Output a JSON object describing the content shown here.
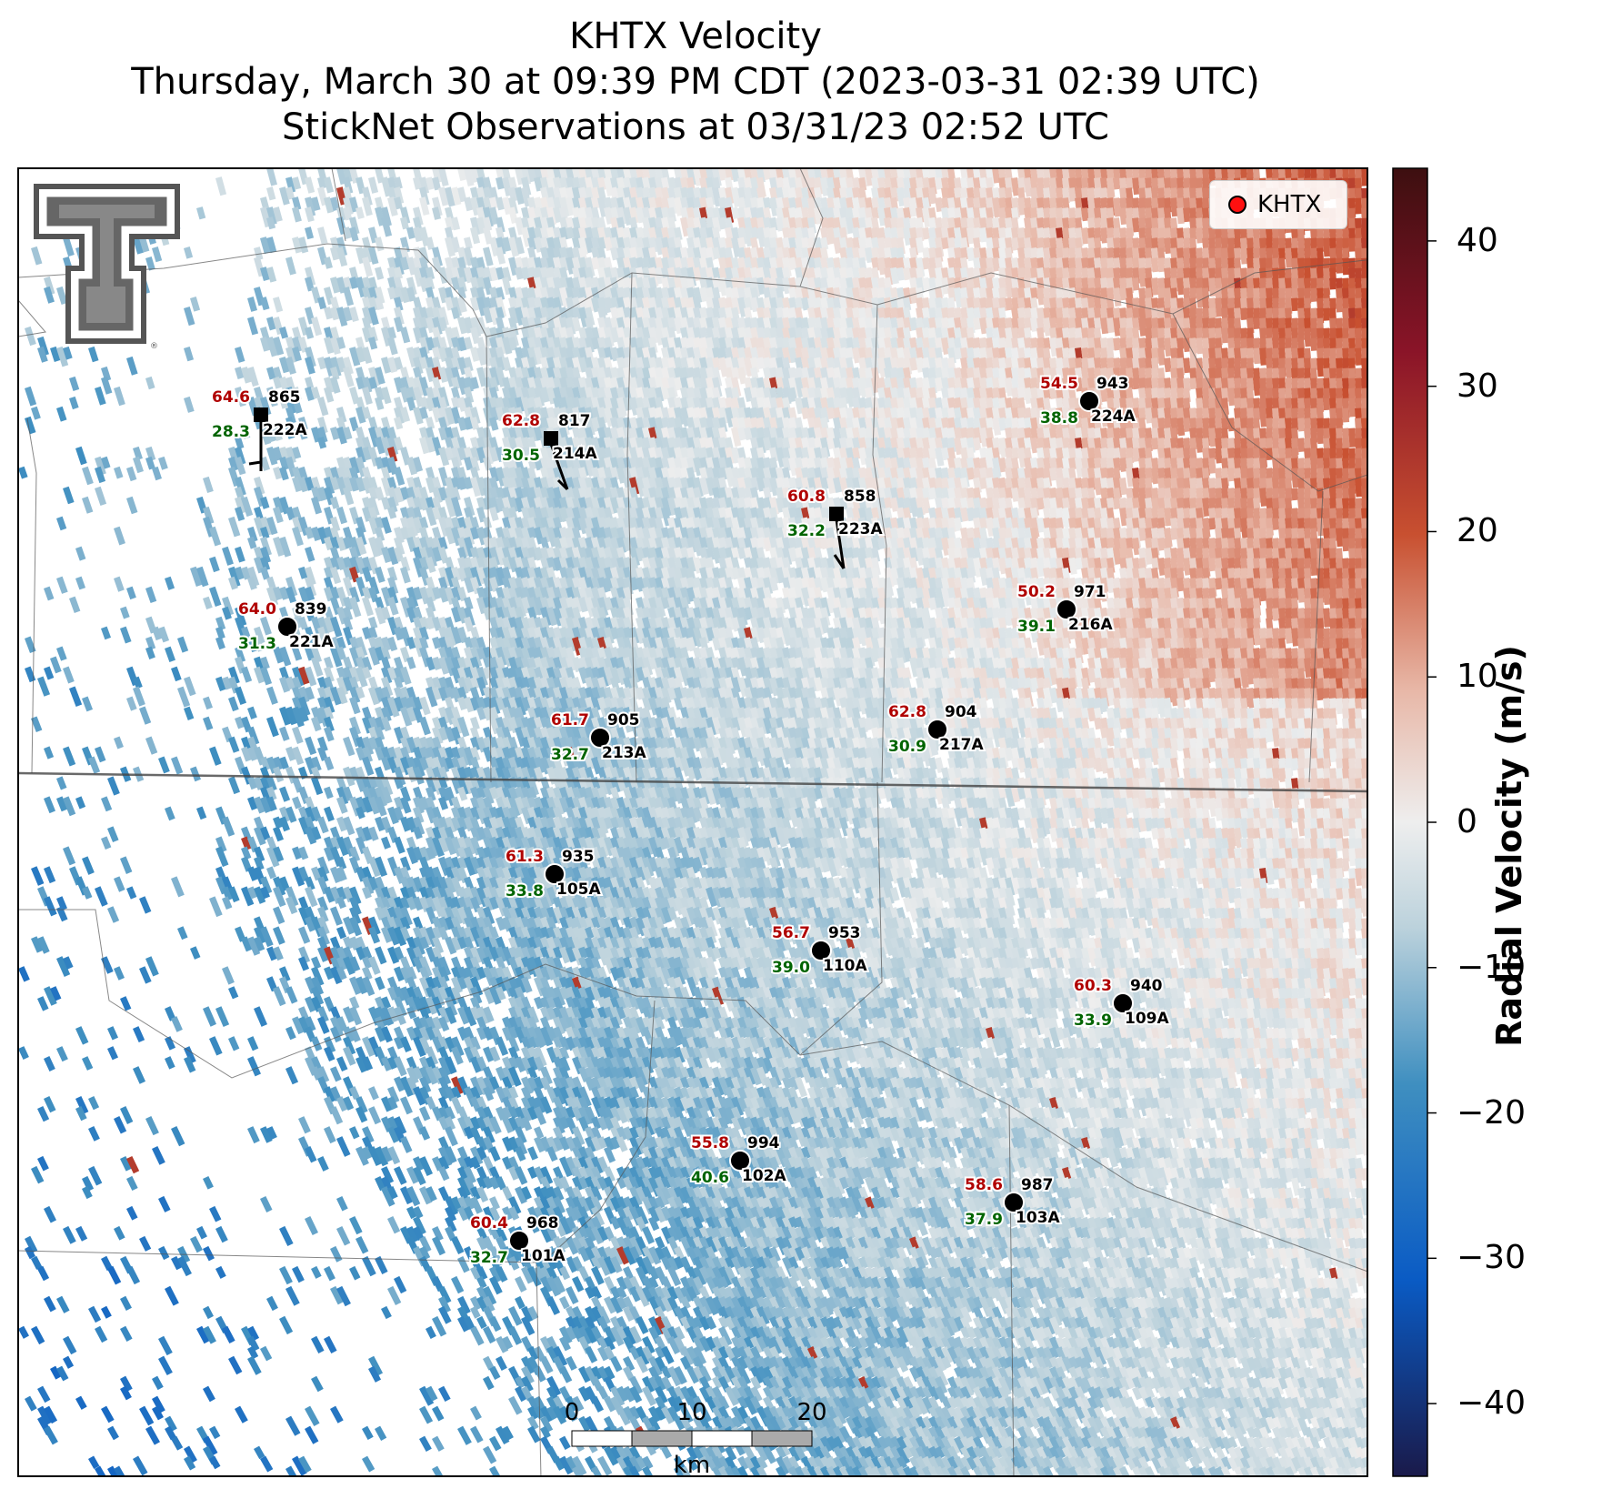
{
  "title": {
    "line1": "KHTX Velocity",
    "line2": "Thursday, March 30 at 09:39 PM CDT (2023-03-31 02:39 UTC)",
    "line3": "StickNet Observations at 03/31/23 02:52 UTC"
  },
  "legend": {
    "label": "KHTX",
    "marker_color": "#ff1010"
  },
  "colorbar": {
    "label": "Radial Velocity (m/s)",
    "ticks": [
      "40",
      "30",
      "20",
      "10",
      "0",
      "−10",
      "−20",
      "−30",
      "−40"
    ],
    "range": [
      -45,
      45
    ],
    "colors": [
      "#1a1a4a",
      "#0a5bc4",
      "#3f8fc0",
      "#bcd2dc",
      "#eeeeee",
      "#e8b8a8",
      "#c85030",
      "#8a1428",
      "#3d0f10"
    ]
  },
  "scalebar": {
    "ticks": [
      "0",
      "10",
      "20"
    ],
    "unit": "km"
  },
  "logo": {
    "text": "TT"
  },
  "stations": [
    {
      "id": "222A",
      "top": "865",
      "red": "64.6",
      "green": "28.3",
      "marker": "square",
      "barb": true
    },
    {
      "id": "214A",
      "top": "817",
      "red": "62.8",
      "green": "30.5",
      "marker": "square",
      "barb": true
    },
    {
      "id": "223A",
      "top": "858",
      "red": "60.8",
      "green": "32.2",
      "marker": "square",
      "barb": true
    },
    {
      "id": "224A",
      "top": "943",
      "red": "54.5",
      "green": "38.8",
      "marker": "circle",
      "barb": false
    },
    {
      "id": "216A",
      "top": "971",
      "red": "50.2",
      "green": "39.1",
      "marker": "circle",
      "barb": false
    },
    {
      "id": "221A",
      "top": "839",
      "red": "64.0",
      "green": "31.3",
      "marker": "circle",
      "barb": false
    },
    {
      "id": "213A",
      "top": "905",
      "red": "61.7",
      "green": "32.7",
      "marker": "circle",
      "barb": false
    },
    {
      "id": "217A",
      "top": "904",
      "red": "62.8",
      "green": "30.9",
      "marker": "circle",
      "barb": false
    },
    {
      "id": "105A",
      "top": "935",
      "red": "61.3",
      "green": "33.8",
      "marker": "circle",
      "barb": false
    },
    {
      "id": "110A",
      "top": "953",
      "red": "56.7",
      "green": "39.0",
      "marker": "circle",
      "barb": false
    },
    {
      "id": "109A",
      "top": "940",
      "red": "60.3",
      "green": "33.9",
      "marker": "circle",
      "barb": false
    },
    {
      "id": "102A",
      "top": "994",
      "red": "55.8",
      "green": "40.6",
      "marker": "circle",
      "barb": false
    },
    {
      "id": "103A",
      "top": "987",
      "red": "58.6",
      "green": "37.9",
      "marker": "circle",
      "barb": false
    },
    {
      "id": "101A",
      "top": "968",
      "red": "60.4",
      "green": "32.7",
      "marker": "circle",
      "barb": false
    }
  ]
}
